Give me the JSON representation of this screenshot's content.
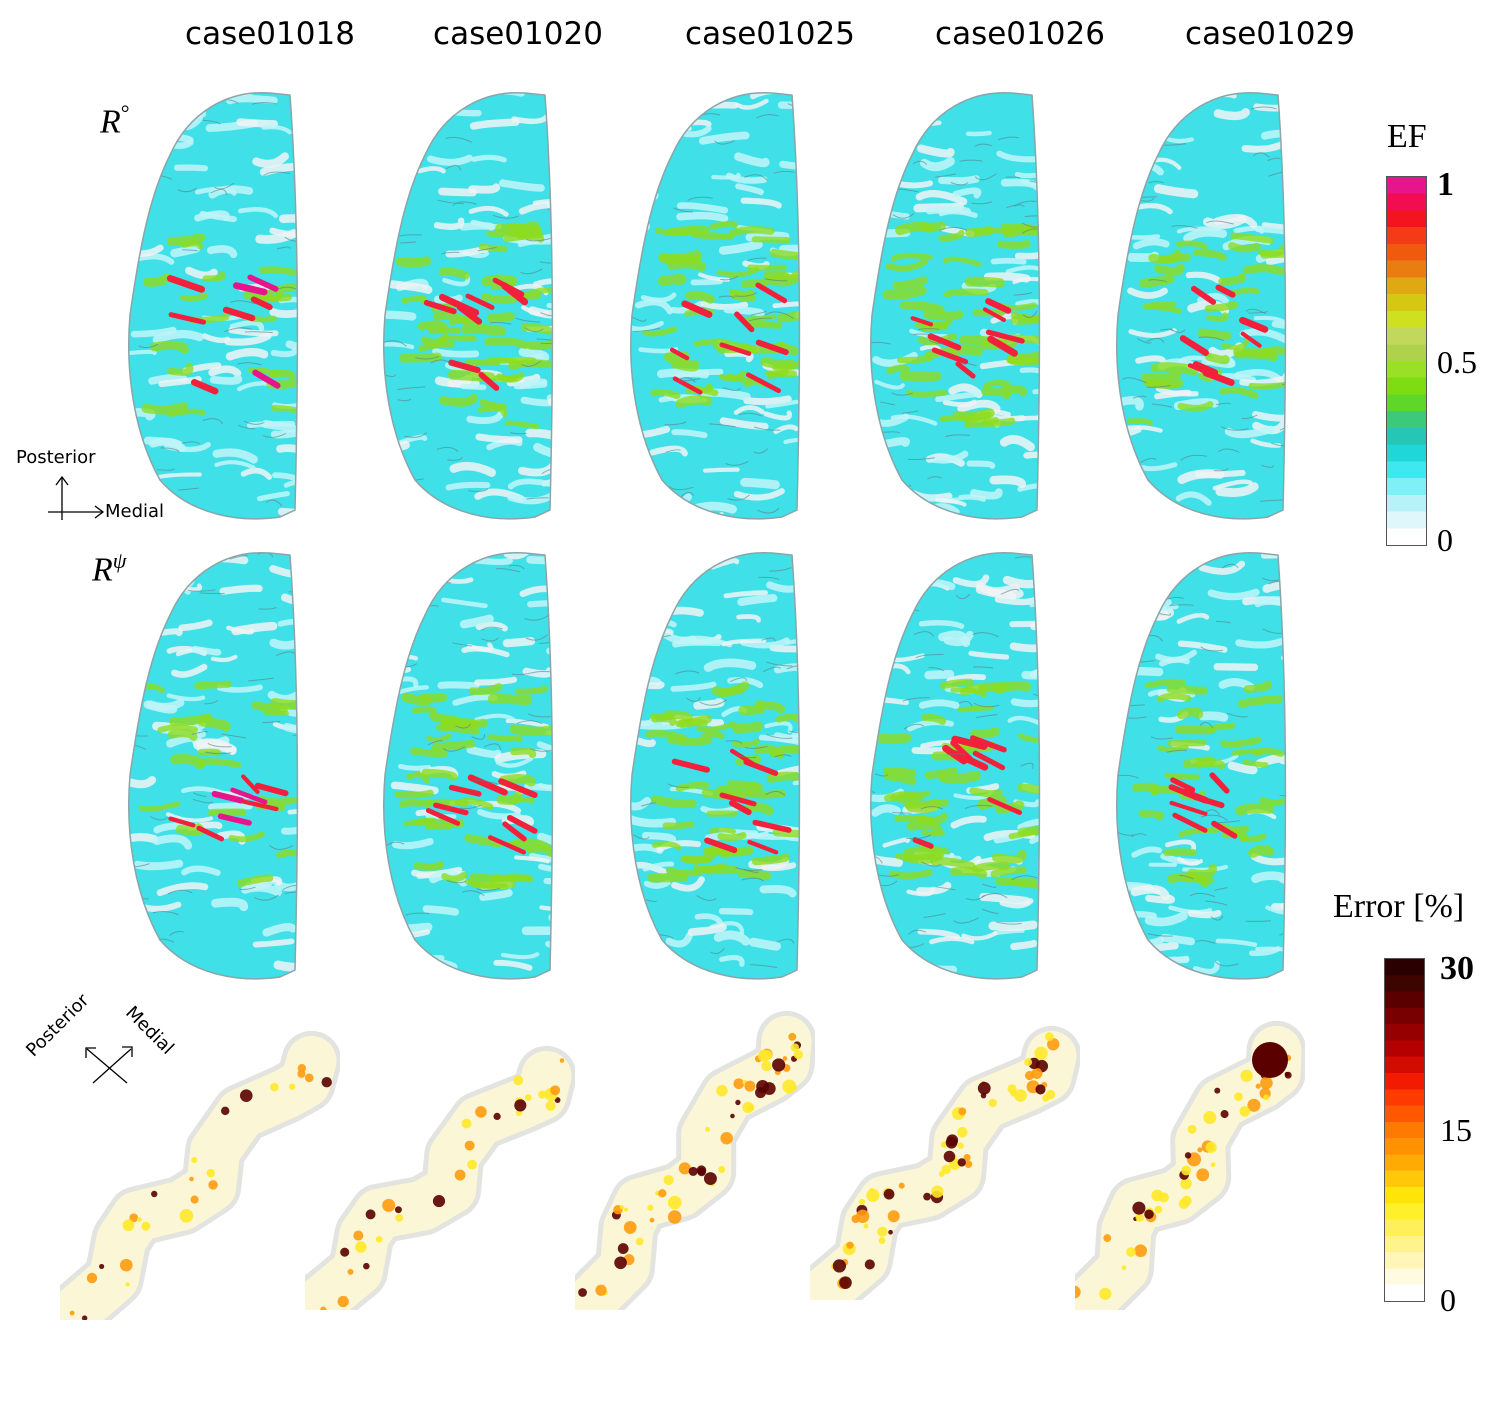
{
  "columns": [
    "case01018",
    "case01020",
    "case01025",
    "case01026",
    "case01029"
  ],
  "rows": {
    "row1": {
      "base": "R",
      "sup": "°"
    },
    "row2": {
      "base": "R",
      "sup": "ψ"
    }
  },
  "axes_top": {
    "up": "Posterior",
    "right": "Medial"
  },
  "axes_bottom": {
    "left": "Posterior",
    "right": "Medial"
  },
  "colorbar_ef": {
    "title": "EF",
    "ticks": [
      "1",
      "0.5",
      "0"
    ],
    "colors": [
      "#ffffff",
      "#dff7fb",
      "#b6f2f8",
      "#7ff0f6",
      "#3ee8f0",
      "#1fd6d9",
      "#26c6b4",
      "#3cc97a",
      "#5ed62a",
      "#7ddc12",
      "#99e026",
      "#aed34a",
      "#c2d85c",
      "#cfe020",
      "#d4c812",
      "#e0a812",
      "#ea7d12",
      "#f05a0e",
      "#f43a16",
      "#f4141e",
      "#f20c50",
      "#e8148c"
    ]
  },
  "colorbar_err": {
    "title": "Error [%]",
    "ticks": [
      "30",
      "15",
      "0"
    ],
    "colors": [
      "#ffffff",
      "#fffbe0",
      "#fff6b8",
      "#fff38c",
      "#fff05a",
      "#fff02a",
      "#ffe40a",
      "#ffc808",
      "#ffaa05",
      "#ff9200",
      "#ff7a00",
      "#ff5800",
      "#ff3a00",
      "#f21a00",
      "#d20c00",
      "#b40000",
      "#960000",
      "#780000",
      "#5a0000",
      "#3e0400",
      "#2a0000"
    ]
  },
  "brain_colors": {
    "base": "#3fe0e8",
    "light": "#bff5f8",
    "white": "#f1f3f4",
    "green": "#8fdc1e",
    "red": "#f2203a",
    "magenta": "#e8148c"
  },
  "error_colors": {
    "base": "#fbf7d6",
    "grey": "#e3e3e0",
    "yellow": "#ffe82a",
    "orange": "#ff9b10",
    "dark": "#5a0000"
  }
}
